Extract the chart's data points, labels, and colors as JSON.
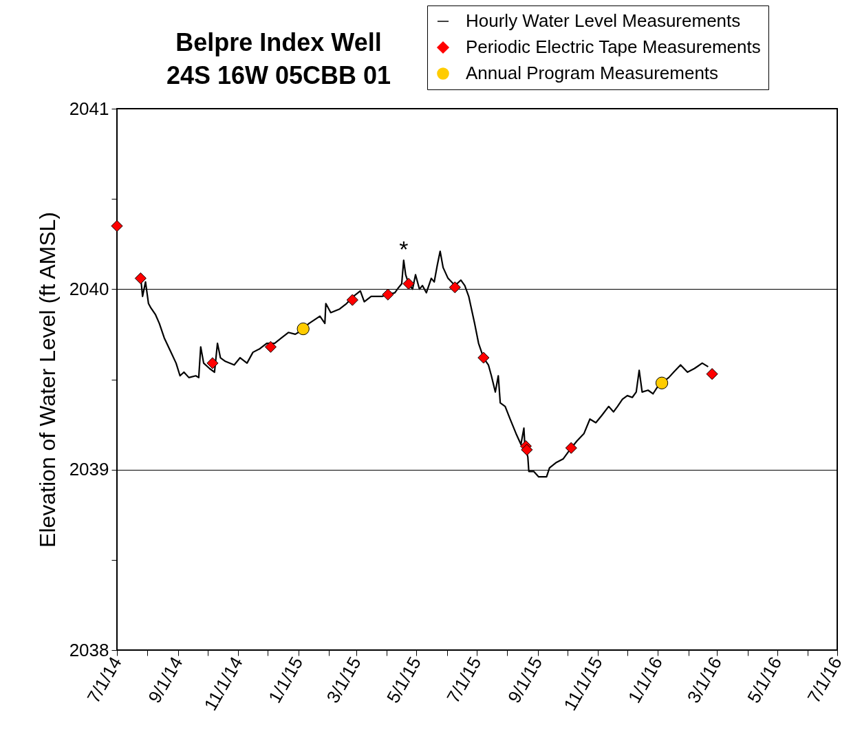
{
  "chart_data": {
    "type": "line",
    "title": [
      "Belpre Index Well",
      "24S 16W 05CBB 01"
    ],
    "ylabel": "Elevation of Water Level (ft AMSL)",
    "xlim": [
      "2014-07-01",
      "2016-07-01"
    ],
    "xticks": [
      {
        "value": "2014-07-01",
        "label": "7/1/14"
      },
      {
        "value": "2014-08-01",
        "label": null
      },
      {
        "value": "2014-09-01",
        "label": "9/1/14"
      },
      {
        "value": "2014-10-01",
        "label": null
      },
      {
        "value": "2014-11-01",
        "label": "11/1/14"
      },
      {
        "value": "2014-12-01",
        "label": null
      },
      {
        "value": "2015-01-01",
        "label": "1/1/15"
      },
      {
        "value": "2015-02-01",
        "label": null
      },
      {
        "value": "2015-03-01",
        "label": "3/1/15"
      },
      {
        "value": "2015-04-01",
        "label": null
      },
      {
        "value": "2015-05-01",
        "label": "5/1/15"
      },
      {
        "value": "2015-06-01",
        "label": null
      },
      {
        "value": "2015-07-01",
        "label": "7/1/15"
      },
      {
        "value": "2015-08-01",
        "label": null
      },
      {
        "value": "2015-09-01",
        "label": "9/1/15"
      },
      {
        "value": "2015-10-01",
        "label": null
      },
      {
        "value": "2015-11-01",
        "label": "11/1/15"
      },
      {
        "value": "2015-12-01",
        "label": null
      },
      {
        "value": "2016-01-01",
        "label": "1/1/16"
      },
      {
        "value": "2016-02-01",
        "label": null
      },
      {
        "value": "2016-03-01",
        "label": "3/1/16"
      },
      {
        "value": "2016-04-01",
        "label": null
      },
      {
        "value": "2016-05-01",
        "label": "5/1/16"
      },
      {
        "value": "2016-06-01",
        "label": null
      },
      {
        "value": "2016-07-01",
        "label": "7/1/16"
      }
    ],
    "ylim": [
      2038,
      2041
    ],
    "yticks": [
      2038,
      {
        "value": 2038.5,
        "label": null
      },
      2039,
      {
        "value": 2039.5,
        "label": null
      },
      2040,
      {
        "value": 2040.5,
        "label": null
      },
      2041
    ],
    "grid": "y",
    "legend": "top right",
    "annotations": [
      {
        "text": "*",
        "x": "2015-04-18",
        "y": 2040.16
      }
    ],
    "series": [
      {
        "name": "Hourly Water Level Measurements",
        "color": "#000000",
        "line_style": "solid",
        "x": [
          "2014-07-22",
          "2014-07-25",
          "2014-07-27",
          "2014-07-30",
          "2014-08-02",
          "2014-08-04",
          "2014-08-09",
          "2014-08-13",
          "2014-08-18",
          "2014-08-24",
          "2014-08-30",
          "2014-09-03",
          "2014-09-07",
          "2014-09-12",
          "2014-09-19",
          "2014-09-22",
          "2014-09-24",
          "2014-09-27",
          "2014-10-03",
          "2014-10-08",
          "2014-10-11",
          "2014-10-14",
          "2014-10-19",
          "2014-10-28",
          "2014-11-03",
          "2014-11-10",
          "2014-11-16",
          "2014-11-23",
          "2014-11-30",
          "2014-12-08",
          "2014-12-15",
          "2014-12-22",
          "2014-12-29",
          "2015-01-01",
          "2015-01-12",
          "2015-01-23",
          "2015-01-28",
          "2015-01-29",
          "2015-02-03",
          "2015-02-12",
          "2015-02-19",
          "2015-02-26",
          "2015-03-05",
          "2015-03-09",
          "2015-03-16",
          "2015-03-27",
          "2015-04-02",
          "2015-04-09",
          "2015-04-13",
          "2015-04-16",
          "2015-04-18",
          "2015-04-20",
          "2015-04-23",
          "2015-04-27",
          "2015-04-30",
          "2015-05-04",
          "2015-05-07",
          "2015-05-11",
          "2015-05-16",
          "2015-05-19",
          "2015-05-22",
          "2015-05-25",
          "2015-05-28",
          "2015-06-02",
          "2015-06-09",
          "2015-06-15",
          "2015-06-19",
          "2015-06-23",
          "2015-06-29",
          "2015-07-03",
          "2015-07-08",
          "2015-07-13",
          "2015-07-16",
          "2015-07-20",
          "2015-07-23",
          "2015-07-25",
          "2015-07-30",
          "2015-08-04",
          "2015-08-10",
          "2015-08-15",
          "2015-08-18",
          "2015-08-19",
          "2015-08-22",
          "2015-08-23",
          "2015-08-28",
          "2015-09-02",
          "2015-09-10",
          "2015-09-13",
          "2015-09-20",
          "2015-09-27",
          "2015-10-05",
          "2015-10-11",
          "2015-10-18",
          "2015-10-24",
          "2015-10-30",
          "2015-11-05",
          "2015-11-12",
          "2015-11-17",
          "2015-11-21",
          "2015-11-26",
          "2015-12-01",
          "2015-12-06",
          "2015-12-10",
          "2015-12-13",
          "2015-12-16",
          "2015-12-22",
          "2015-12-27",
          "2016-01-02",
          "2016-01-12",
          "2016-01-17",
          "2016-01-24",
          "2016-01-31",
          "2016-02-07",
          "2016-02-15",
          "2016-02-21"
        ],
        "values": [
          2040.06,
          2040.07,
          2039.96,
          2040.04,
          2039.92,
          2039.9,
          2039.86,
          2039.81,
          2039.73,
          2039.66,
          2039.59,
          2039.52,
          2039.54,
          2039.51,
          2039.52,
          2039.51,
          2039.68,
          2039.59,
          2039.56,
          2039.54,
          2039.7,
          2039.62,
          2039.6,
          2039.58,
          2039.62,
          2039.59,
          2039.65,
          2039.67,
          2039.7,
          2039.7,
          2039.73,
          2039.76,
          2039.75,
          2039.76,
          2039.81,
          2039.85,
          2039.81,
          2039.92,
          2039.87,
          2039.89,
          2039.92,
          2039.96,
          2039.99,
          2039.93,
          2039.96,
          2039.96,
          2039.97,
          2039.98,
          2040.01,
          2040.03,
          2040.16,
          2040.08,
          2040.03,
          2040.0,
          2040.08,
          2040.0,
          2040.02,
          2039.98,
          2040.06,
          2040.04,
          2040.13,
          2040.21,
          2040.12,
          2040.06,
          2040.02,
          2040.05,
          2040.02,
          2039.96,
          2039.81,
          2039.7,
          2039.62,
          2039.58,
          2039.52,
          2039.43,
          2039.52,
          2039.37,
          2039.35,
          2039.28,
          2039.2,
          2039.14,
          2039.23,
          2039.13,
          2039.07,
          2038.99,
          2038.99,
          2038.96,
          2038.96,
          2039.01,
          2039.04,
          2039.06,
          2039.12,
          2039.16,
          2039.2,
          2039.28,
          2039.26,
          2039.3,
          2039.35,
          2039.32,
          2039.35,
          2039.39,
          2039.41,
          2039.4,
          2039.43,
          2039.55,
          2039.43,
          2039.44,
          2039.42,
          2039.47,
          2039.51,
          2039.54,
          2039.58,
          2039.54,
          2039.56,
          2039.59,
          2039.57
        ]
      },
      {
        "name": "Periodic Electric Tape Measurements",
        "type": "scatter",
        "marker": "diamond",
        "color": "#ff0000",
        "x": [
          "2014-07-01",
          "2014-07-25",
          "2014-10-06",
          "2014-12-04",
          "2015-02-25",
          "2015-04-02",
          "2015-04-23",
          "2015-06-09",
          "2015-07-08",
          "2015-08-20",
          "2015-08-21",
          "2015-10-05",
          "2016-02-25"
        ],
        "values": [
          2040.35,
          2040.06,
          2039.59,
          2039.68,
          2039.94,
          2039.97,
          2040.03,
          2040.01,
          2039.62,
          2039.13,
          2039.11,
          2039.12,
          2039.53
        ]
      },
      {
        "name": "Annual Program Measurements",
        "type": "scatter",
        "marker": "circle",
        "color": "#ffcc00",
        "x": [
          "2015-01-06",
          "2016-01-05"
        ],
        "values": [
          2039.78,
          2039.48
        ]
      }
    ]
  }
}
